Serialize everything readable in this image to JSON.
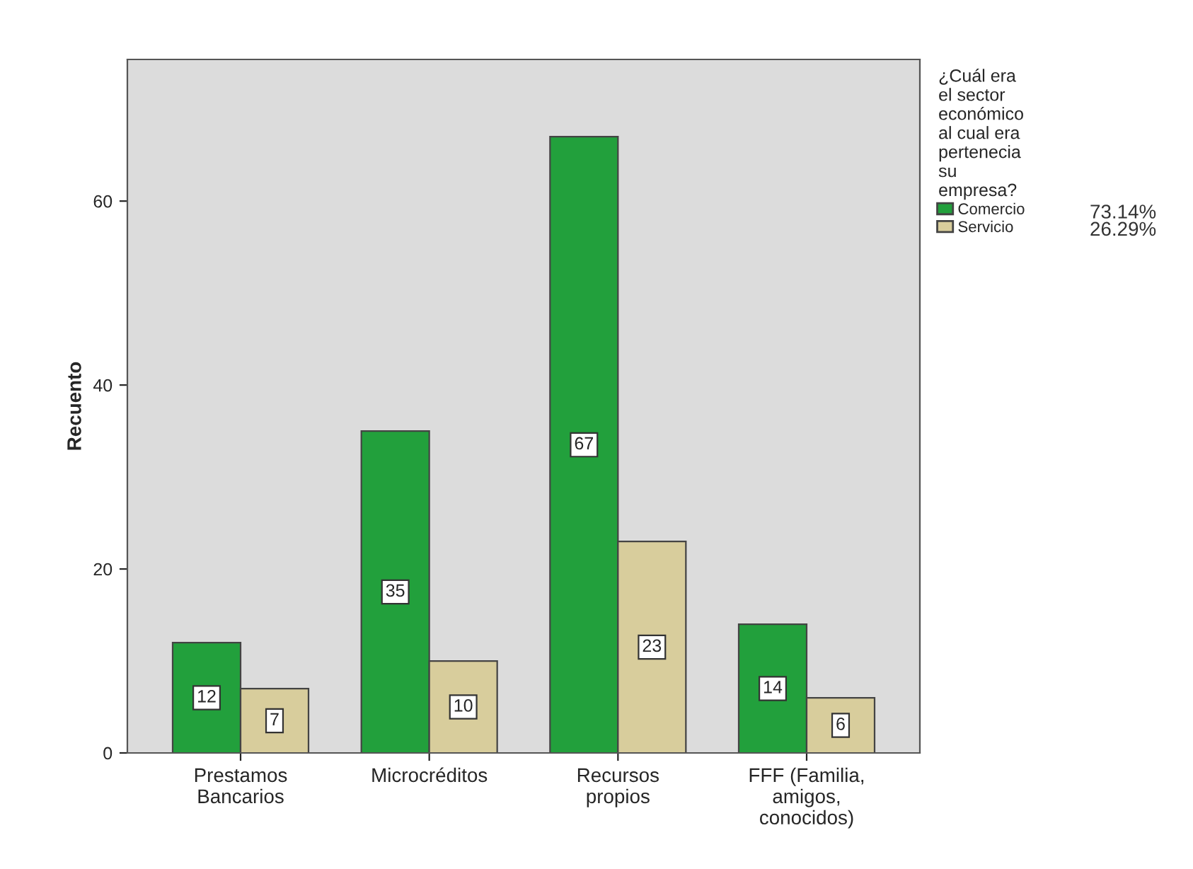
{
  "chart_data": {
    "type": "bar",
    "ylabel": "Recuento",
    "legend_title": "¿Cuál era\nel sector\neconómico\nal cual era\npertenecia\nsu\nempresa?",
    "categories": [
      "Prestamos\nBancarios",
      "Microcréditos",
      "Recursos\npropios",
      "FFF (Familia,\namigos,\nconocidos)"
    ],
    "series": [
      {
        "name": "Comercio",
        "color": "#22a03c",
        "values": [
          12,
          35,
          67,
          14
        ]
      },
      {
        "name": "Servicio",
        "color": "#d8cd9c",
        "values": [
          7,
          10,
          23,
          6
        ]
      }
    ],
    "annotations": [
      "73.14%",
      "26.29%"
    ],
    "ylim": [
      0,
      75.4
    ],
    "yticks": [
      0,
      20,
      40,
      60
    ],
    "data_labels": true,
    "grid": false,
    "legend": "top right"
  }
}
